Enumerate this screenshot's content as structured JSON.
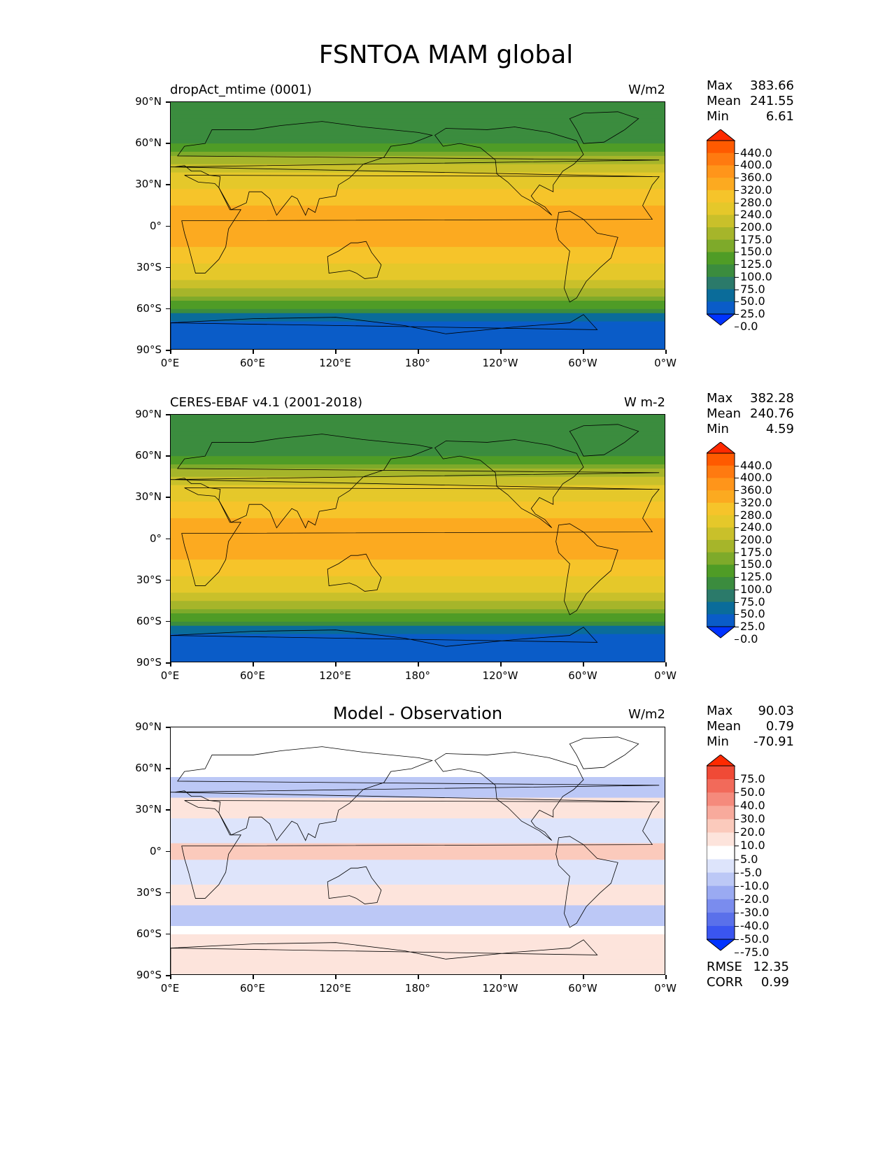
{
  "figure": {
    "title": "FSNTOA MAM global"
  },
  "axes": {
    "y_ticks": [
      "90°N",
      "60°N",
      "30°N",
      "0°",
      "30°S",
      "60°S",
      "90°S"
    ],
    "x_ticks": [
      "0°E",
      "60°E",
      "120°E",
      "180°",
      "120°W",
      "60°W",
      "0°W"
    ]
  },
  "panels": [
    {
      "title": "dropAct_mtime (0001)",
      "units": "W/m2",
      "stats": [
        {
          "label": "Max",
          "value": "383.66"
        },
        {
          "label": "Mean",
          "value": "241.55"
        },
        {
          "label": "Min",
          "value": "6.61"
        }
      ],
      "colorbar": {
        "labels": [
          "440.0",
          "400.0",
          "360.0",
          "320.0",
          "280.0",
          "240.0",
          "200.0",
          "175.0",
          "150.0",
          "125.0",
          "100.0",
          "75.0",
          "50.0",
          "25.0",
          "0.0"
        ],
        "colors": [
          "#ff2a00",
          "#ff5a00",
          "#ff7a10",
          "#ff951a",
          "#fcaa20",
          "#f6c42a",
          "#e5c82a",
          "#c9c02a",
          "#a6b52a",
          "#7eaa2a",
          "#4f9c26",
          "#3b8c3e",
          "#2b7a6a",
          "#0a6c9a",
          "#0a5cc8",
          "#0033ff"
        ]
      }
    },
    {
      "title": "CERES-EBAF v4.1 (2001-2018)",
      "units": "W m-2",
      "stats": [
        {
          "label": "Max",
          "value": "382.28"
        },
        {
          "label": "Mean",
          "value": "240.76"
        },
        {
          "label": "Min",
          "value": "4.59"
        }
      ],
      "colorbar": {
        "labels": [
          "440.0",
          "400.0",
          "360.0",
          "320.0",
          "280.0",
          "240.0",
          "200.0",
          "175.0",
          "150.0",
          "125.0",
          "100.0",
          "75.0",
          "50.0",
          "25.0",
          "0.0"
        ],
        "colors": [
          "#ff2a00",
          "#ff5a00",
          "#ff7a10",
          "#ff951a",
          "#fcaa20",
          "#f6c42a",
          "#e5c82a",
          "#c9c02a",
          "#a6b52a",
          "#7eaa2a",
          "#4f9c26",
          "#3b8c3e",
          "#2b7a6a",
          "#0a6c9a",
          "#0a5cc8",
          "#0033ff"
        ]
      }
    },
    {
      "title": "Model - Observation",
      "units": "W/m2",
      "stats": [
        {
          "label": "Max",
          "value": "90.03"
        },
        {
          "label": "Mean",
          "value": "0.79"
        },
        {
          "label": "Min",
          "value": "-70.91"
        }
      ],
      "extra_stats": [
        {
          "label": "RMSE",
          "value": "12.35"
        },
        {
          "label": "CORR",
          "value": "0.99"
        }
      ],
      "colorbar": {
        "labels": [
          "75.0",
          "50.0",
          "40.0",
          "30.0",
          "20.0",
          "10.0",
          "5.0",
          "-5.0",
          "-10.0",
          "-20.0",
          "-30.0",
          "-40.0",
          "-50.0",
          "-75.0"
        ],
        "colors": [
          "#ff2a00",
          "#f04a36",
          "#f26a5a",
          "#f58a7c",
          "#f8aa9c",
          "#fbcabc",
          "#fde4dc",
          "#ffffff",
          "#dde4fb",
          "#bcc8f6",
          "#9aaaf2",
          "#7a8cee",
          "#5a70ea",
          "#3a55f0",
          "#0033ff"
        ]
      }
    }
  ]
}
